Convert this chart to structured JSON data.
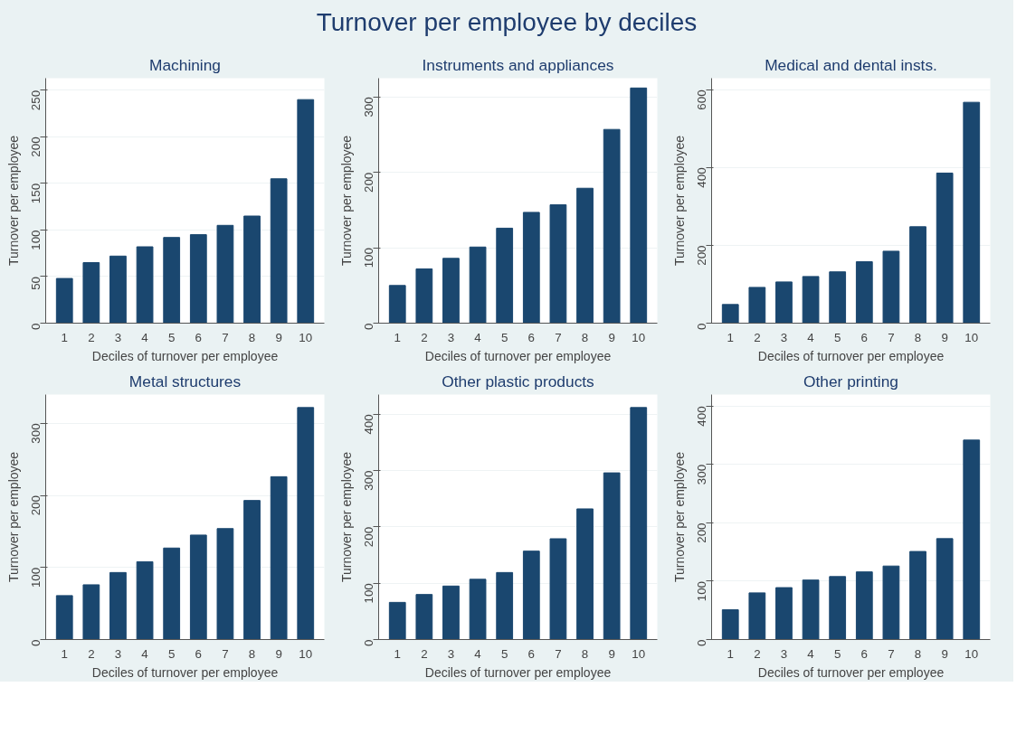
{
  "chart_data": [
    {
      "type": "bar",
      "title": "Machining",
      "annotations": [
        "Turnover per employee by deciles"
      ],
      "xlabel": "Deciles of turnover per employee",
      "ylabel": "Turnover per employee",
      "categories": [
        "1",
        "2",
        "3",
        "4",
        "5",
        "6",
        "7",
        "8",
        "9",
        "10"
      ],
      "values": [
        48,
        65,
        72,
        82,
        92,
        95,
        105,
        115,
        155,
        240
      ],
      "color": "#1a476f",
      "ylim": [
        0,
        263
      ],
      "yticks": [
        0,
        50,
        100,
        150,
        200,
        250
      ],
      "grid": "y"
    },
    {
      "type": "bar",
      "title": "Instruments and appliances",
      "xlabel": "Deciles of turnover per employee",
      "ylabel": "Turnover per employee",
      "categories": [
        "1",
        "2",
        "3",
        "4",
        "5",
        "6",
        "7",
        "8",
        "9",
        "10"
      ],
      "values": [
        50,
        72,
        86,
        101,
        126,
        147,
        157,
        179,
        257,
        312
      ],
      "color": "#1a476f",
      "ylim": [
        0,
        325
      ],
      "yticks": [
        0,
        100,
        200,
        300
      ],
      "grid": "y"
    },
    {
      "type": "bar",
      "title": "Medical and dental insts.",
      "xlabel": "Deciles of turnover per employee",
      "ylabel": "Turnover per employee",
      "categories": [
        "1",
        "2",
        "3",
        "4",
        "5",
        "6",
        "7",
        "8",
        "9",
        "10"
      ],
      "values": [
        48,
        92,
        106,
        120,
        132,
        158,
        185,
        248,
        386,
        568
      ],
      "color": "#1a476f",
      "ylim": [
        0,
        630
      ],
      "yticks": [
        0,
        200,
        400,
        600
      ],
      "grid": "y"
    },
    {
      "type": "bar",
      "title": "Metal structures",
      "xlabel": "Deciles of turnover per employee",
      "ylabel": "Turnover per employee",
      "categories": [
        "1",
        "2",
        "3",
        "4",
        "5",
        "6",
        "7",
        "8",
        "9",
        "10"
      ],
      "values": [
        61,
        76,
        93,
        108,
        127,
        145,
        154,
        193,
        226,
        322
      ],
      "color": "#1a476f",
      "ylim": [
        0,
        340
      ],
      "yticks": [
        0,
        100,
        200,
        300
      ],
      "grid": "y"
    },
    {
      "type": "bar",
      "title": "Other plastic products",
      "xlabel": "Deciles of turnover per employee",
      "ylabel": "Turnover per employee",
      "categories": [
        "1",
        "2",
        "3",
        "4",
        "5",
        "6",
        "7",
        "8",
        "9",
        "10"
      ],
      "values": [
        66,
        80,
        95,
        107,
        119,
        157,
        179,
        232,
        296,
        412
      ],
      "color": "#1a476f",
      "ylim": [
        0,
        435
      ],
      "yticks": [
        0,
        100,
        200,
        300,
        400
      ],
      "grid": "y"
    },
    {
      "type": "bar",
      "title": "Other printing",
      "xlabel": "Deciles of turnover per employee",
      "ylabel": "Turnover per employee",
      "categories": [
        "1",
        "2",
        "3",
        "4",
        "5",
        "6",
        "7",
        "8",
        "9",
        "10"
      ],
      "values": [
        51,
        80,
        89,
        102,
        108,
        116,
        126,
        151,
        173,
        342
      ],
      "color": "#1a476f",
      "ylim": [
        0,
        420
      ],
      "yticks": [
        0,
        100,
        200,
        300,
        400
      ],
      "grid": "y"
    }
  ]
}
